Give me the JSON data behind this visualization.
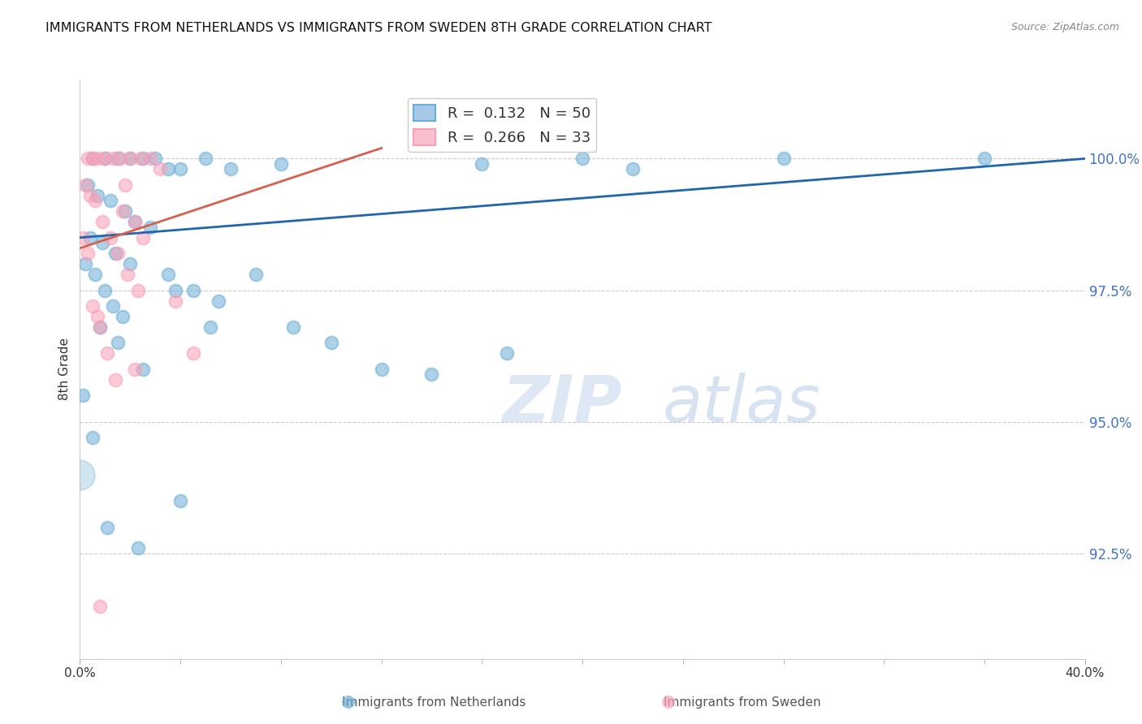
{
  "title": "IMMIGRANTS FROM NETHERLANDS VS IMMIGRANTS FROM SWEDEN 8TH GRADE CORRELATION CHART",
  "source": "Source: ZipAtlas.com",
  "ylabel": "8th Grade",
  "xlim": [
    0.0,
    40.0
  ],
  "ylim": [
    90.5,
    101.5
  ],
  "yticks": [
    92.5,
    95.0,
    97.5,
    100.0
  ],
  "ytick_labels": [
    "92.5%",
    "95.0%",
    "97.5%",
    "100.0%"
  ],
  "legend_blue_r": "0.132",
  "legend_blue_n": "50",
  "legend_pink_r": "0.266",
  "legend_pink_n": "33",
  "blue_color": "#6baed6",
  "pink_color": "#fa9fb5",
  "blue_line_color": "#2166ac",
  "pink_line_color": "#d6604d",
  "background_color": "#ffffff",
  "watermark_zip": "ZIP",
  "watermark_atlas": "atlas",
  "blue_points_x": [
    0.5,
    1.0,
    1.5,
    2.0,
    2.5,
    3.0,
    3.5,
    4.0,
    5.0,
    6.0,
    0.3,
    0.7,
    1.2,
    1.8,
    2.2,
    2.8,
    0.4,
    0.9,
    1.4,
    2.0,
    3.5,
    4.5,
    5.5,
    7.0,
    8.5,
    10.0,
    12.0,
    14.0,
    17.0,
    0.2,
    0.6,
    1.0,
    1.3,
    1.7,
    0.8,
    1.5,
    2.5,
    3.8,
    5.2,
    20.0,
    22.0,
    0.1,
    0.5,
    1.1,
    2.3,
    4.0,
    28.0,
    36.0,
    8.0,
    16.0
  ],
  "blue_points_y": [
    100.0,
    100.0,
    100.0,
    100.0,
    100.0,
    100.0,
    99.8,
    99.8,
    100.0,
    99.8,
    99.5,
    99.3,
    99.2,
    99.0,
    98.8,
    98.7,
    98.5,
    98.4,
    98.2,
    98.0,
    97.8,
    97.5,
    97.3,
    97.8,
    96.8,
    96.5,
    96.0,
    95.9,
    96.3,
    98.0,
    97.8,
    97.5,
    97.2,
    97.0,
    96.8,
    96.5,
    96.0,
    97.5,
    96.8,
    100.0,
    99.8,
    95.5,
    94.7,
    93.0,
    92.6,
    93.5,
    100.0,
    100.0,
    99.9,
    99.9
  ],
  "pink_points_x": [
    0.3,
    0.5,
    0.7,
    1.0,
    1.3,
    1.6,
    2.0,
    2.4,
    2.8,
    3.2,
    0.2,
    0.4,
    0.6,
    0.9,
    1.2,
    1.5,
    1.9,
    2.3,
    0.1,
    0.3,
    0.5,
    0.8,
    1.1,
    1.4,
    4.5,
    3.8,
    2.5,
    1.7,
    0.7,
    2.2,
    0.8,
    1.8,
    2.2
  ],
  "pink_points_y": [
    100.0,
    100.0,
    100.0,
    100.0,
    100.0,
    100.0,
    100.0,
    100.0,
    100.0,
    99.8,
    99.5,
    99.3,
    99.2,
    98.8,
    98.5,
    98.2,
    97.8,
    97.5,
    98.5,
    98.2,
    97.2,
    96.8,
    96.3,
    95.8,
    96.3,
    97.3,
    98.5,
    99.0,
    97.0,
    98.8,
    91.5,
    99.5,
    96.0
  ],
  "blue_trendline_x": [
    0.0,
    40.0
  ],
  "blue_trendline_y": [
    98.5,
    100.0
  ],
  "pink_trendline_x": [
    0.0,
    12.0
  ],
  "pink_trendline_y": [
    98.3,
    100.2
  ],
  "big_blue_dot_x": 0.0,
  "big_blue_dot_y": 94.0
}
